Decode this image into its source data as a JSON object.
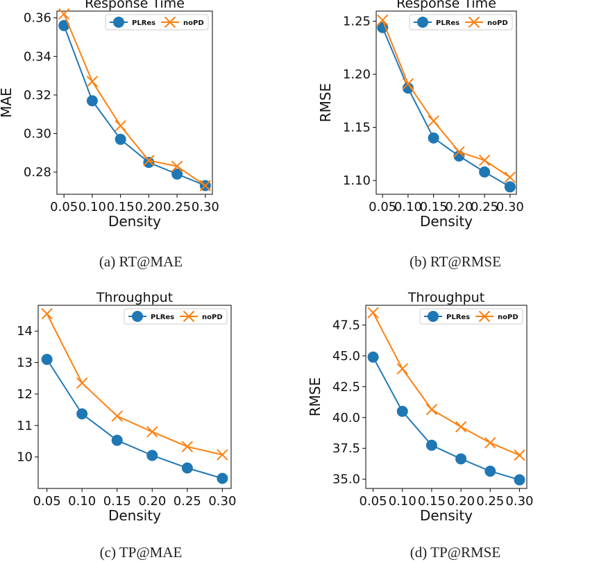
{
  "colors": {
    "series0": "#1f77b4",
    "series1": "#ff7f0e",
    "axis": "#000000"
  },
  "chart_data": [
    {
      "type": "line",
      "title": "Response Time",
      "xlabel": "Density",
      "ylabel": "MAE",
      "caption": "(a)  RT@MAE",
      "x": [
        0.05,
        0.1,
        0.15,
        0.2,
        0.25,
        0.3
      ],
      "xticks": [
        "0.05",
        "0.10",
        "0.15",
        "0.20",
        "0.25",
        "0.30"
      ],
      "yticks": [
        "0.28",
        "0.30",
        "0.32",
        "0.34",
        "0.36"
      ],
      "ylim": [
        0.2685,
        0.3635
      ],
      "legend": "top-right",
      "series": [
        {
          "name": "PLRes",
          "marker": "circle",
          "values": [
            0.356,
            0.317,
            0.297,
            0.285,
            0.279,
            0.273
          ]
        },
        {
          "name": "noPD",
          "marker": "x",
          "values": [
            0.362,
            0.327,
            0.304,
            0.286,
            0.283,
            0.273
          ]
        }
      ]
    },
    {
      "type": "line",
      "title": "Response Time",
      "xlabel": "Density",
      "ylabel": "RMSE",
      "caption": "(b)  RT@RMSE",
      "x": [
        0.05,
        0.1,
        0.15,
        0.2,
        0.25,
        0.3
      ],
      "xticks": [
        "0.05",
        "0.10",
        "0.15",
        "0.20",
        "0.25",
        "0.30"
      ],
      "yticks": [
        "1.10",
        "1.15",
        "1.20",
        "1.25"
      ],
      "ylim": [
        1.087,
        1.2595
      ],
      "legend": "top-right",
      "series": [
        {
          "name": "PLRes",
          "marker": "circle",
          "values": [
            1.244,
            1.187,
            1.14,
            1.123,
            1.108,
            1.094
          ]
        },
        {
          "name": "noPD",
          "marker": "x",
          "values": [
            1.251,
            1.191,
            1.156,
            1.127,
            1.119,
            1.103
          ]
        }
      ]
    },
    {
      "type": "line",
      "title": "Throughput",
      "xlabel": "Density",
      "ylabel": "MAE",
      "caption": "(c)  TP@MAE",
      "x": [
        0.05,
        0.1,
        0.15,
        0.2,
        0.25,
        0.3
      ],
      "xticks": [
        "0.05",
        "0.10",
        "0.15",
        "0.20",
        "0.25",
        "0.30"
      ],
      "yticks": [
        "10",
        "11",
        "12",
        "13",
        "14"
      ],
      "ylim": [
        9.0,
        14.82
      ],
      "legend": "top-right",
      "series": [
        {
          "name": "PLRes",
          "marker": "circle",
          "values": [
            13.1,
            11.37,
            10.53,
            10.05,
            9.65,
            9.32
          ]
        },
        {
          "name": "noPD",
          "marker": "x",
          "values": [
            14.55,
            12.35,
            11.3,
            10.8,
            10.33,
            10.07
          ]
        }
      ]
    },
    {
      "type": "line",
      "title": "Throughput",
      "xlabel": "Density",
      "ylabel": "RMSE",
      "caption": "(d)  TP@RMSE",
      "x": [
        0.05,
        0.1,
        0.15,
        0.2,
        0.25,
        0.3
      ],
      "xticks": [
        "0.05",
        "0.10",
        "0.15",
        "0.20",
        "0.25",
        "0.30"
      ],
      "yticks": [
        "35.0",
        "37.5",
        "40.0",
        "42.5",
        "45.0",
        "47.5"
      ],
      "ylim": [
        34.25,
        49.1
      ],
      "legend": "top-right",
      "series": [
        {
          "name": "PLRes",
          "marker": "circle",
          "values": [
            44.9,
            40.5,
            37.75,
            36.65,
            35.65,
            34.95
          ]
        },
        {
          "name": "noPD",
          "marker": "x",
          "values": [
            48.5,
            43.95,
            40.65,
            39.25,
            37.95,
            36.95
          ]
        }
      ]
    }
  ]
}
